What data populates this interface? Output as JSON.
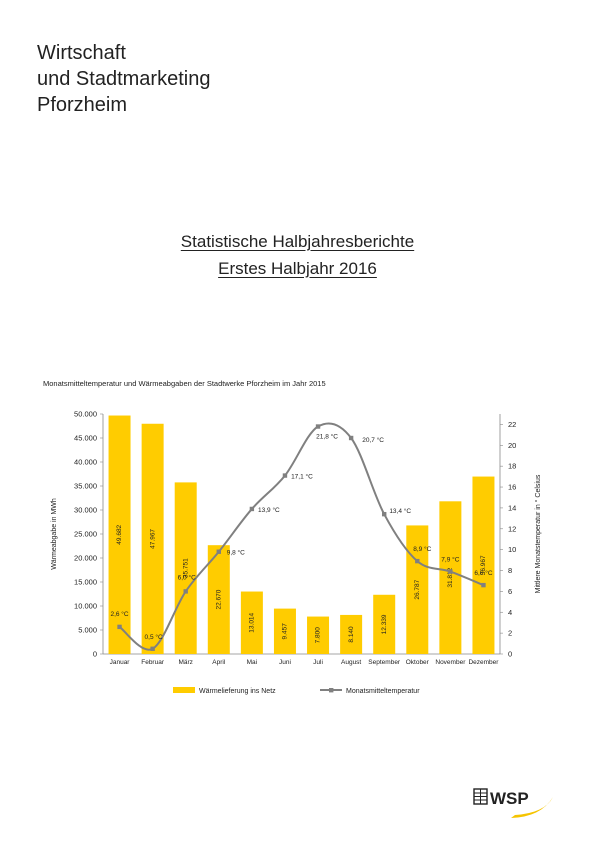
{
  "header": {
    "org_lines": [
      "Wirtschaft",
      "und Stadtmarketing",
      "Pforzheim"
    ]
  },
  "report": {
    "title_line1": "Statistische Halbjahresberichte",
    "title_line2": "Erstes Halbjahr 2016"
  },
  "logo": {
    "text": "WSP",
    "accent_color": "#f5c400"
  },
  "colors": {
    "bar": "#ffcc00",
    "line": "#808080",
    "text": "#222222"
  },
  "chart_data": {
    "type": "bar",
    "title": "Monatsmitteltemperatur und Wärmeabgaben der Stadtwerke Pforzheim im Jahr 2015",
    "ylabel": "Wärmeabgabe  in MWh",
    "y2label": "Mittlere Monatstemperatur in ° Celsius",
    "categories": [
      "Januar",
      "Februar",
      "März",
      "April",
      "Mai",
      "Juni",
      "Juli",
      "August",
      "September",
      "Oktober",
      "November",
      "Dezember"
    ],
    "ylim": [
      0,
      50000
    ],
    "y_ticks": [
      "0",
      "5.000",
      "10.000",
      "15.000",
      "20.000",
      "25.000",
      "30.000",
      "35.000",
      "40.000",
      "45.000",
      "50.000"
    ],
    "y2lim": [
      0,
      23
    ],
    "y2_ticks": [
      "0",
      "2",
      "4",
      "6",
      "8",
      "10",
      "12",
      "14",
      "16",
      "18",
      "20",
      "22"
    ],
    "grid": false,
    "legend_position": "bottom",
    "series": [
      {
        "name": "Wärmelieferung ins Netz",
        "type": "bar",
        "axis": "left",
        "values": [
          49682,
          47967,
          35751,
          22670,
          13014,
          9457,
          7800,
          8140,
          12339,
          26787,
          31812,
          36967
        ],
        "labels": [
          "49.682",
          "47.967",
          "35.751",
          "22.670",
          "13.014",
          "9.457",
          "7.800",
          "8.140",
          "12.339",
          "26.787",
          "31.812",
          "36.967"
        ]
      },
      {
        "name": "Monatsmitteltemperatur",
        "type": "line",
        "axis": "right",
        "values": [
          2.6,
          0.5,
          6.0,
          9.8,
          13.9,
          17.1,
          21.8,
          20.7,
          13.4,
          8.9,
          7.9,
          6.6
        ],
        "labels": [
          "2,6 °C",
          "0,5 °C",
          "6,0 °C",
          "9,8 °C",
          "13,9 °C",
          "17,1 °C",
          "21,8 °C",
          "20,7 °C",
          "13,4 °C",
          "8,9 °C",
          "7,9 °C",
          "6,6 °C"
        ]
      }
    ]
  }
}
